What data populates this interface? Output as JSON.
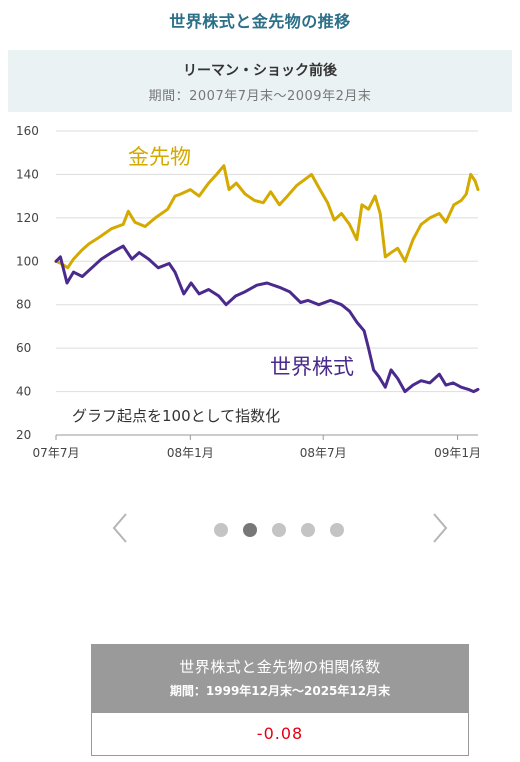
{
  "header": {
    "title": "世界株式と金先物の推移"
  },
  "chart_header": {
    "title": "リーマン・ショック前後",
    "period": "期間：2007年7月末～2009年2月末"
  },
  "chart_data": {
    "type": "line",
    "x_ticks": [
      "07年7月",
      "08年1月",
      "08年7月",
      "09年1月"
    ],
    "y_ticks": [
      20,
      40,
      60,
      80,
      100,
      120,
      140,
      160
    ],
    "ylim": [
      20,
      160
    ],
    "xlim": [
      "2007-07-31",
      "2009-02-28"
    ],
    "grid": "horizontal",
    "note": "グラフ起点を100として指数化",
    "series": [
      {
        "name": "金先物",
        "color": "#d4a900",
        "points": [
          [
            "2007-07-31",
            100
          ],
          [
            "2007-08-07",
            99
          ],
          [
            "2007-08-16",
            97
          ],
          [
            "2007-08-24",
            101
          ],
          [
            "2007-09-04",
            105
          ],
          [
            "2007-09-14",
            108
          ],
          [
            "2007-09-28",
            111
          ],
          [
            "2007-10-15",
            115
          ],
          [
            "2007-10-31",
            117
          ],
          [
            "2007-11-07",
            123
          ],
          [
            "2007-11-16",
            118
          ],
          [
            "2007-11-30",
            116
          ],
          [
            "2007-12-14",
            120
          ],
          [
            "2007-12-31",
            124
          ],
          [
            "2008-01-10",
            130
          ],
          [
            "2008-01-18",
            131
          ],
          [
            "2008-01-31",
            133
          ],
          [
            "2008-02-12",
            130
          ],
          [
            "2008-02-25",
            136
          ],
          [
            "2008-03-07",
            140
          ],
          [
            "2008-03-17",
            144
          ],
          [
            "2008-03-24",
            133
          ],
          [
            "2008-04-03",
            136
          ],
          [
            "2008-04-15",
            131
          ],
          [
            "2008-04-28",
            128
          ],
          [
            "2008-05-10",
            127
          ],
          [
            "2008-05-20",
            132
          ],
          [
            "2008-06-01",
            126
          ],
          [
            "2008-06-12",
            130
          ],
          [
            "2008-06-25",
            135
          ],
          [
            "2008-07-07",
            138
          ],
          [
            "2008-07-15",
            140
          ],
          [
            "2008-07-25",
            134
          ],
          [
            "2008-08-06",
            127
          ],
          [
            "2008-08-15",
            119
          ],
          [
            "2008-08-25",
            122
          ],
          [
            "2008-09-05",
            117
          ],
          [
            "2008-09-15",
            110
          ],
          [
            "2008-09-22",
            126
          ],
          [
            "2008-10-01",
            124
          ],
          [
            "2008-10-10",
            130
          ],
          [
            "2008-10-17",
            122
          ],
          [
            "2008-10-24",
            102
          ],
          [
            "2008-11-01",
            104
          ],
          [
            "2008-11-10",
            106
          ],
          [
            "2008-11-20",
            100
          ],
          [
            "2008-12-01",
            110
          ],
          [
            "2008-12-12",
            117
          ],
          [
            "2008-12-24",
            120
          ],
          [
            "2009-01-06",
            122
          ],
          [
            "2009-01-15",
            118
          ],
          [
            "2009-01-26",
            126
          ],
          [
            "2009-02-05",
            128
          ],
          [
            "2009-02-12",
            131
          ],
          [
            "2009-02-18",
            140
          ],
          [
            "2009-02-24",
            137
          ],
          [
            "2009-02-28",
            133
          ]
        ]
      },
      {
        "name": "世界株式",
        "color": "#4a2a8c",
        "points": [
          [
            "2007-07-31",
            100
          ],
          [
            "2007-08-06",
            102
          ],
          [
            "2007-08-15",
            90
          ],
          [
            "2007-08-24",
            95
          ],
          [
            "2007-09-05",
            93
          ],
          [
            "2007-09-18",
            97
          ],
          [
            "2007-10-01",
            101
          ],
          [
            "2007-10-15",
            104
          ],
          [
            "2007-10-31",
            107
          ],
          [
            "2007-11-12",
            101
          ],
          [
            "2007-11-22",
            104
          ],
          [
            "2007-12-05",
            101
          ],
          [
            "2007-12-18",
            97
          ],
          [
            "2008-01-02",
            99
          ],
          [
            "2008-01-10",
            95
          ],
          [
            "2008-01-22",
            85
          ],
          [
            "2008-02-01",
            90
          ],
          [
            "2008-02-12",
            85
          ],
          [
            "2008-02-25",
            87
          ],
          [
            "2008-03-10",
            84
          ],
          [
            "2008-03-20",
            80
          ],
          [
            "2008-04-02",
            84
          ],
          [
            "2008-04-15",
            86
          ],
          [
            "2008-05-01",
            89
          ],
          [
            "2008-05-15",
            90
          ],
          [
            "2008-06-01",
            88
          ],
          [
            "2008-06-15",
            86
          ],
          [
            "2008-06-30",
            81
          ],
          [
            "2008-07-10",
            82
          ],
          [
            "2008-07-25",
            80
          ],
          [
            "2008-08-10",
            82
          ],
          [
            "2008-08-25",
            80
          ],
          [
            "2008-09-05",
            77
          ],
          [
            "2008-09-15",
            72
          ],
          [
            "2008-09-25",
            68
          ],
          [
            "2008-10-01",
            60
          ],
          [
            "2008-10-08",
            50
          ],
          [
            "2008-10-15",
            47
          ],
          [
            "2008-10-24",
            42
          ],
          [
            "2008-11-01",
            50
          ],
          [
            "2008-11-10",
            46
          ],
          [
            "2008-11-20",
            40
          ],
          [
            "2008-12-01",
            43
          ],
          [
            "2008-12-12",
            45
          ],
          [
            "2008-12-24",
            44
          ],
          [
            "2009-01-06",
            48
          ],
          [
            "2009-01-15",
            43
          ],
          [
            "2009-01-25",
            44
          ],
          [
            "2009-02-05",
            42
          ],
          [
            "2009-02-15",
            41
          ],
          [
            "2009-02-22",
            40
          ],
          [
            "2009-02-28",
            41
          ]
        ]
      }
    ]
  },
  "carousel": {
    "slide_count": 5,
    "active_index": 1
  },
  "correlation": {
    "title": "世界株式と金先物の相関係数",
    "period": "期間：1999年12月末～2025年12月末",
    "value": "-0.08"
  }
}
